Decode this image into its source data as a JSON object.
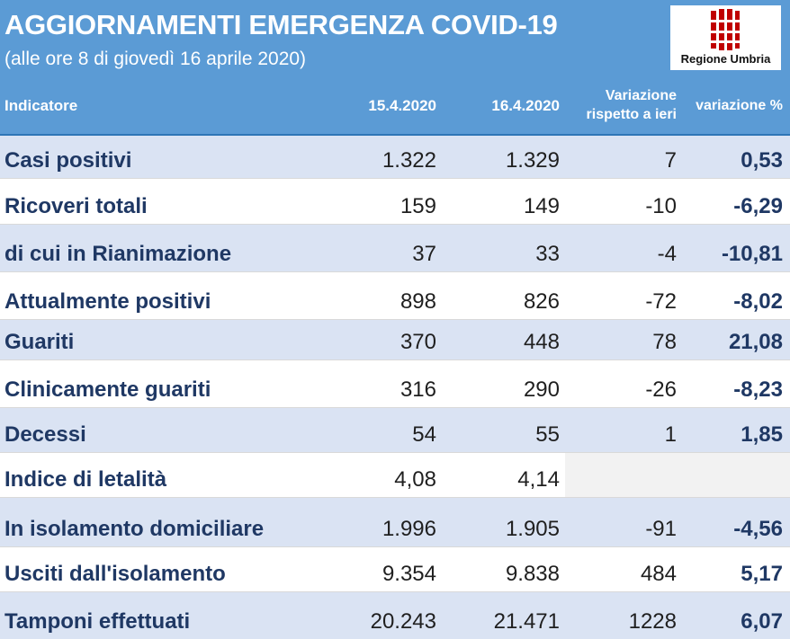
{
  "header": {
    "title": "AGGIORNAMENTI EMERGENZA COVID-19",
    "subtitle": "(alle ore 8 di giovedì 16 aprile 2020)",
    "logo_text": "Regione Umbria",
    "logo_icon": "regione-umbria-emblem",
    "accent_color": "#5b9bd5",
    "logo_color": "#c00000"
  },
  "table": {
    "headers": {
      "indicator": "Indicatore",
      "date1": "15.4.2020",
      "date2": "16.4.2020",
      "variation_line1": "Variazione",
      "variation_line2": "rispetto a ieri",
      "variation_pct": "variazione %"
    },
    "rows": [
      {
        "label": "Casi positivi",
        "v1": "1.322",
        "v2": "1.329",
        "var": "7",
        "pct": "0,53"
      },
      {
        "label": "Ricoveri totali",
        "v1": "159",
        "v2": "149",
        "var": "-10",
        "pct": "-6,29"
      },
      {
        "label": "di cui in Rianimazione",
        "v1": "37",
        "v2": "33",
        "var": "-4",
        "pct": "-10,81"
      },
      {
        "label": "Attualmente positivi",
        "v1": "898",
        "v2": "826",
        "var": "-72",
        "pct": "-8,02"
      },
      {
        "label": "Guariti",
        "v1": "370",
        "v2": "448",
        "var": "78",
        "pct": "21,08"
      },
      {
        "label": "Clinicamente guariti",
        "v1": "316",
        "v2": "290",
        "var": "-26",
        "pct": "-8,23"
      },
      {
        "label": "Decessi",
        "v1": "54",
        "v2": "55",
        "var": "1",
        "pct": "1,85"
      },
      {
        "label": "Indice di letalità",
        "v1": "4,08",
        "v2": "4,14",
        "var": "",
        "pct": ""
      },
      {
        "label": "In isolamento domiciliare",
        "v1": "1.996",
        "v2": "1.905",
        "var": "-91",
        "pct": "-4,56"
      },
      {
        "label": "Usciti dall'isolamento",
        "v1": "9.354",
        "v2": "9.838",
        "var": "484",
        "pct": "5,17"
      },
      {
        "label": "Tamponi effettuati",
        "v1": "20.243",
        "v2": "21.471",
        "var": "1228",
        "pct": "6,07"
      }
    ]
  }
}
